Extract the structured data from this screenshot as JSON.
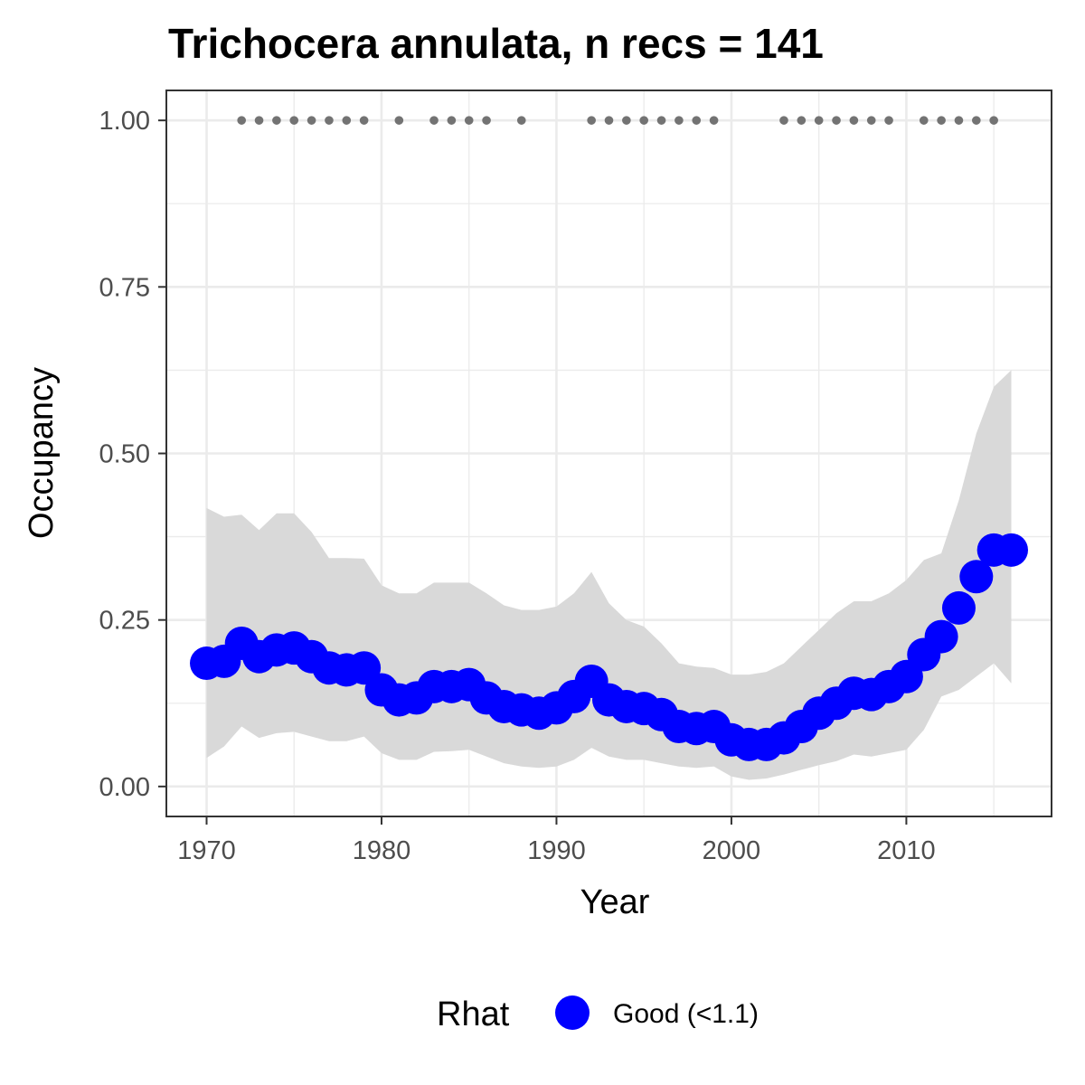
{
  "chart_data": {
    "type": "line",
    "title": "Trichocera annulata, n recs = 141",
    "xlabel": "Year",
    "ylabel": "Occupancy",
    "xlim": [
      1967.7,
      2018.3
    ],
    "ylim": [
      -0.045,
      1.045
    ],
    "x_ticks": [
      1970,
      1980,
      1990,
      2000,
      2010
    ],
    "x_tick_labels": [
      "1970",
      "1980",
      "1990",
      "2000",
      "2010"
    ],
    "y_ticks": [
      0,
      0.25,
      0.5,
      0.75,
      1.0
    ],
    "y_tick_labels": [
      "0.00",
      "0.25",
      "0.50",
      "0.75",
      "1.00"
    ],
    "grid": true,
    "legend": {
      "position": "bottom",
      "title": "Rhat",
      "label": "Good (<1.1)"
    },
    "colors": {
      "points": "#0000ff",
      "ribbon": "#d9d9d9",
      "records": "#737373",
      "panel_border": "#333333",
      "grid": "#ebebeb"
    },
    "series": [
      {
        "years": [
          1970,
          1971,
          1972,
          1973,
          1974,
          1975,
          1976,
          1977,
          1978,
          1979,
          1980,
          1981,
          1982,
          1983,
          1984,
          1985,
          1986,
          1987,
          1988,
          1989,
          1990,
          1991,
          1992,
          1993,
          1994,
          1995,
          1996,
          1997,
          1998,
          1999,
          2000,
          2001,
          2002,
          2003,
          2004,
          2005,
          2006,
          2007,
          2008,
          2009,
          2010,
          2011,
          2012,
          2013,
          2014,
          2015,
          2016
        ],
        "values": [
          0.185,
          0.188,
          0.215,
          0.195,
          0.205,
          0.208,
          0.195,
          0.178,
          0.175,
          0.178,
          0.145,
          0.13,
          0.133,
          0.15,
          0.15,
          0.153,
          0.133,
          0.12,
          0.115,
          0.11,
          0.118,
          0.135,
          0.158,
          0.13,
          0.12,
          0.117,
          0.108,
          0.09,
          0.087,
          0.09,
          0.07,
          0.063,
          0.063,
          0.073,
          0.09,
          0.11,
          0.125,
          0.14,
          0.138,
          0.15,
          0.165,
          0.198,
          0.225,
          0.268,
          0.315,
          0.355,
          0.355
        ],
        "lower": [
          0.043,
          0.06,
          0.09,
          0.073,
          0.08,
          0.082,
          0.075,
          0.068,
          0.068,
          0.075,
          0.05,
          0.04,
          0.04,
          0.052,
          0.053,
          0.055,
          0.045,
          0.035,
          0.03,
          0.028,
          0.03,
          0.04,
          0.058,
          0.045,
          0.04,
          0.04,
          0.035,
          0.03,
          0.028,
          0.03,
          0.015,
          0.01,
          0.012,
          0.018,
          0.025,
          0.032,
          0.038,
          0.048,
          0.045,
          0.05,
          0.055,
          0.085,
          0.135,
          0.145,
          0.165,
          0.185,
          0.155
        ],
        "upper": [
          0.418,
          0.405,
          0.408,
          0.385,
          0.41,
          0.41,
          0.382,
          0.343,
          0.343,
          0.342,
          0.302,
          0.29,
          0.29,
          0.306,
          0.306,
          0.306,
          0.29,
          0.272,
          0.265,
          0.265,
          0.27,
          0.29,
          0.322,
          0.275,
          0.25,
          0.24,
          0.215,
          0.185,
          0.18,
          0.178,
          0.168,
          0.168,
          0.172,
          0.185,
          0.21,
          0.235,
          0.26,
          0.278,
          0.278,
          0.29,
          0.31,
          0.34,
          0.35,
          0.43,
          0.53,
          0.6,
          0.625
        ]
      }
    ],
    "records": {
      "y": 1.0,
      "years": [
        1972,
        1973,
        1974,
        1975,
        1976,
        1977,
        1978,
        1979,
        1981,
        1983,
        1984,
        1985,
        1986,
        1988,
        1992,
        1993,
        1994,
        1995,
        1996,
        1997,
        1998,
        1999,
        2003,
        2004,
        2005,
        2006,
        2007,
        2008,
        2009,
        2011,
        2012,
        2013,
        2014,
        2015
      ]
    }
  }
}
